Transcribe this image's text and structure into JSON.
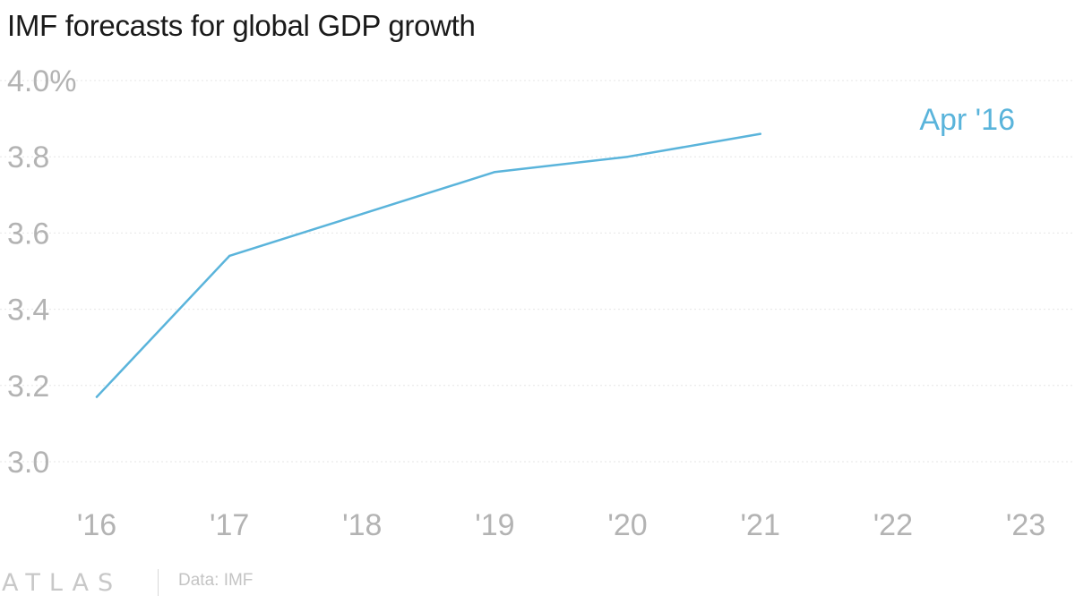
{
  "header": {
    "title": "IMF forecasts for global GDP growth"
  },
  "footer": {
    "brand": "ATLAS",
    "source": "Data: IMF"
  },
  "colors": {
    "series": "#5ab4db",
    "title": "#1a1a1a",
    "tick": "#b3b3b3",
    "grid": "#e6e6e6"
  },
  "chart_data": {
    "type": "line",
    "title": "IMF forecasts for global GDP growth",
    "xlabel": "",
    "ylabel": "",
    "x_ticks": [
      "'16",
      "'17",
      "'18",
      "'19",
      "'20",
      "'21",
      "'22",
      "'23"
    ],
    "y_ticks": [
      "4.0%",
      "3.8",
      "3.6",
      "3.4",
      "3.2",
      "3.0"
    ],
    "y_tick_values": [
      4.0,
      3.8,
      3.6,
      3.4,
      3.2,
      3.0
    ],
    "xlim": [
      2016,
      2023
    ],
    "ylim": [
      3.0,
      4.0
    ],
    "grid": true,
    "series": [
      {
        "name": "Apr '16",
        "x": [
          2016,
          2017,
          2018,
          2019,
          2020,
          2021
        ],
        "values": [
          3.17,
          3.54,
          3.65,
          3.76,
          3.8,
          3.86
        ]
      }
    ]
  }
}
